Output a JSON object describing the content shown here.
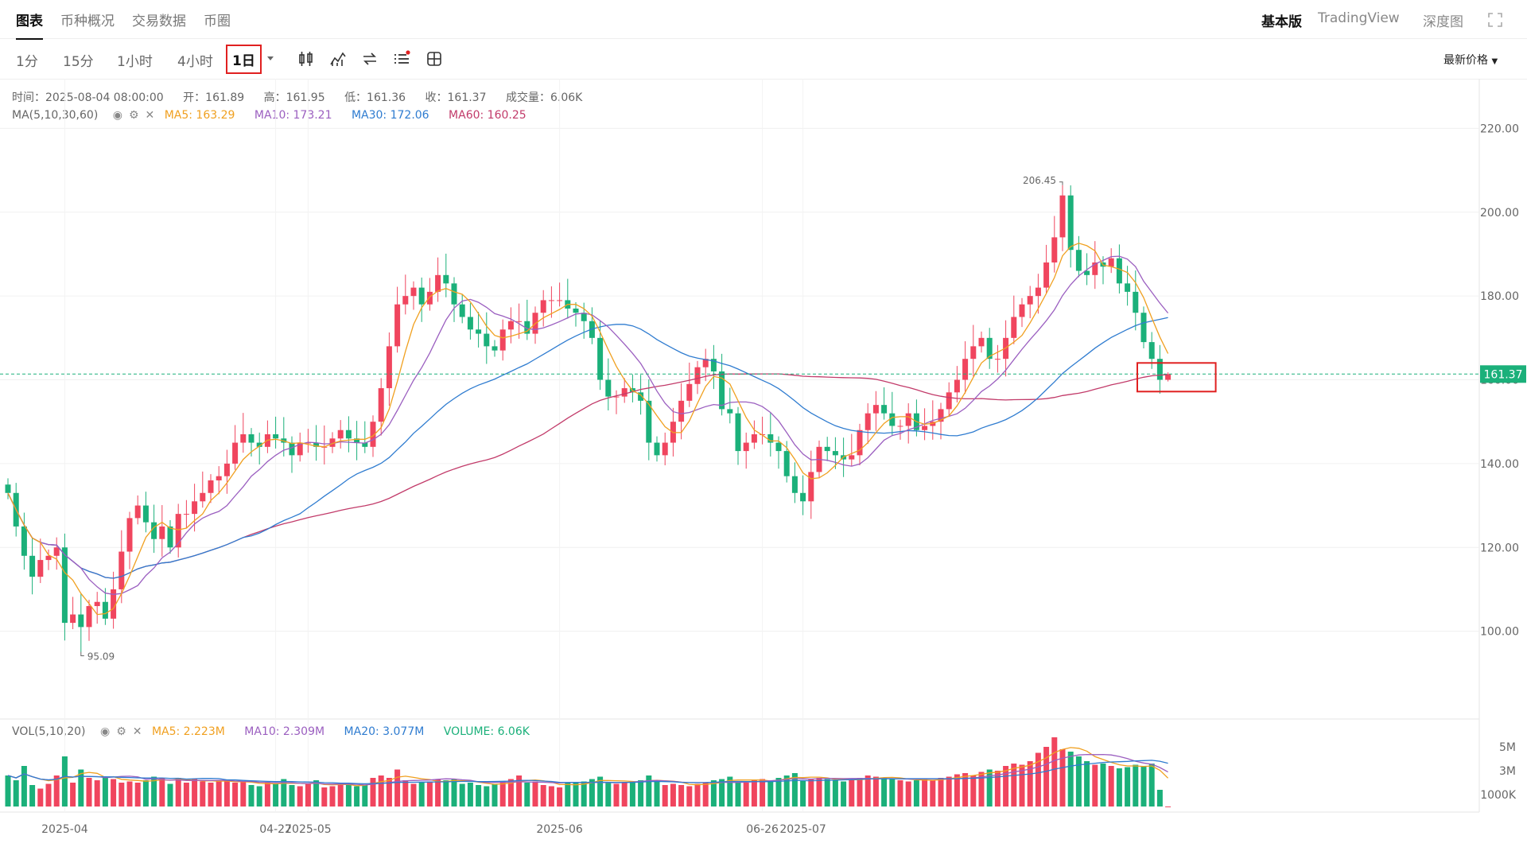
{
  "top_tabs": [
    "图表",
    "币种概况",
    "交易数据",
    "币圈"
  ],
  "top_right": [
    "基本版",
    "TradingView",
    "深度图"
  ],
  "intervals": [
    "1分",
    "15分",
    "1小时",
    "4小时",
    "1日"
  ],
  "selected_interval": "1日",
  "price_type_label": "最新价格",
  "ohlc_info": {
    "time": "时间：2025-08-04 08:00:00",
    "open": "开：161.89",
    "high": "高：161.95",
    "low": "低：161.36",
    "close": "收：161.37",
    "volume": "成交量：6.06K"
  },
  "ma_legend": {
    "label": "MA(5,10,30,60)",
    "ma5": "MA5: 163.29",
    "ma10": "MA10: 173.21",
    "ma30": "MA30: 172.06",
    "ma60": "MA60: 160.25"
  },
  "vol_legend": {
    "label": "VOL(5,10,20)",
    "ma5": "MA5: 2.223M",
    "ma10": "MA10: 2.309M",
    "ma20": "MA20: 3.077M",
    "volume": "VOLUME: 6.06K"
  },
  "colors": {
    "up": "#f0455e",
    "down": "#1bb07a",
    "ma5": "#f0a020",
    "ma10": "#9b5fc0",
    "ma30": "#2f7cd0",
    "ma60": "#c23b6a",
    "price_line": "#1bb07a"
  },
  "chart_data": {
    "type": "candlestick",
    "interval": "1D",
    "x_axis_labels": [
      "2025-04",
      "04-27",
      "2025-05",
      "2025-06",
      "06-26",
      "2025-07"
    ],
    "x_axis_label_dates": [
      "2025-04-01",
      "2025-04-27",
      "2025-05-01",
      "2025-06-01",
      "2025-06-26",
      "2025-07-01"
    ],
    "price_axis": {
      "ticks": [
        100,
        120,
        140,
        160,
        180,
        200,
        220
      ],
      "tick_labels": [
        "100.00",
        "120.00",
        "140.00",
        "160.00",
        "180.00",
        "200.00",
        "220.00"
      ],
      "range": [
        80,
        229
      ]
    },
    "volume_axis": {
      "ticks": [
        1000000,
        3000000,
        5000000
      ],
      "tick_labels": [
        "1000K",
        "3M",
        "5M"
      ],
      "range": [
        0,
        7000000
      ]
    },
    "last_price": 161.37,
    "last_price_label": "161.37",
    "high_marker": {
      "value": 206.45,
      "label": "206.45"
    },
    "low_marker": {
      "value": 95.09,
      "label": "95.09"
    },
    "close_sequence": [
      133,
      125,
      118,
      113,
      117,
      118,
      120,
      102,
      104,
      101,
      106,
      107,
      103,
      110,
      119,
      127,
      130,
      126,
      122,
      125,
      120,
      128,
      128,
      131,
      133,
      136,
      137,
      140,
      145,
      147,
      145,
      144,
      147,
      146,
      145,
      142,
      145,
      145,
      144,
      144,
      146,
      148,
      146,
      145,
      144,
      150,
      158,
      168,
      178,
      180,
      182,
      178,
      181,
      185,
      183,
      178,
      175,
      172,
      171,
      168,
      167,
      172,
      174,
      174,
      171,
      176,
      179,
      179,
      179,
      177,
      176,
      174,
      170,
      160,
      156,
      156,
      158,
      157,
      155,
      145,
      142,
      145,
      150,
      155,
      159,
      163,
      165,
      162,
      153,
      152,
      143,
      145,
      147,
      147,
      145,
      143,
      137,
      133,
      131,
      138,
      144,
      143,
      142,
      141,
      142,
      148,
      152,
      154,
      152,
      149,
      149,
      152,
      148,
      149,
      150,
      153,
      157,
      160,
      165,
      168,
      170,
      165,
      165,
      170,
      175,
      178,
      180,
      182,
      188,
      194,
      204,
      191,
      186,
      185,
      188,
      187,
      189,
      183,
      181,
      176,
      169,
      165,
      160,
      161.37
    ],
    "volume_sequence": [
      2.6,
      2.2,
      3.4,
      1.8,
      1.5,
      1.9,
      2.6,
      4.2,
      2.0,
      3.1,
      2.4,
      2.2,
      2.5,
      2.3,
      2.0,
      2.1,
      2.0,
      2.2,
      2.5,
      2.4,
      1.9,
      2.4,
      2.0,
      2.3,
      2.1,
      2.0,
      2.2,
      2.1,
      2.0,
      2.1,
      1.8,
      1.7,
      2.0,
      1.9,
      2.3,
      1.8,
      1.7,
      1.9,
      2.2,
      1.6,
      1.7,
      1.8,
      1.9,
      1.7,
      1.8,
      2.4,
      2.6,
      2.4,
      3.1,
      2.2,
      1.9,
      2.0,
      2.1,
      2.3,
      2.2,
      2.3,
      1.9,
      2.0,
      1.8,
      1.7,
      1.9,
      2.1,
      2.3,
      2.6,
      2.0,
      2.1,
      1.8,
      1.7,
      1.6,
      2.0,
      2.0,
      2.1,
      2.3,
      2.5,
      2.0,
      1.9,
      2.0,
      2.1,
      2.2,
      2.6,
      2.1,
      1.8,
      1.9,
      1.8,
      1.7,
      1.9,
      2.0,
      2.2,
      2.3,
      2.5,
      2.1,
      2.0,
      2.2,
      2.3,
      2.1,
      2.4,
      2.6,
      2.8,
      2.2,
      2.3,
      2.4,
      2.3,
      2.2,
      2.1,
      2.2,
      2.4,
      2.6,
      2.5,
      2.4,
      2.3,
      2.2,
      2.1,
      2.2,
      2.3,
      2.2,
      2.4,
      2.5,
      2.7,
      2.8,
      2.6,
      2.9,
      3.1,
      3.0,
      3.4,
      3.6,
      3.5,
      3.8,
      4.5,
      5.0,
      5.8,
      4.8,
      4.6,
      4.2,
      3.8,
      3.5,
      3.6,
      3.4,
      3.2,
      3.3,
      3.5,
      3.4,
      3.6,
      1.4,
      0.006
    ]
  }
}
